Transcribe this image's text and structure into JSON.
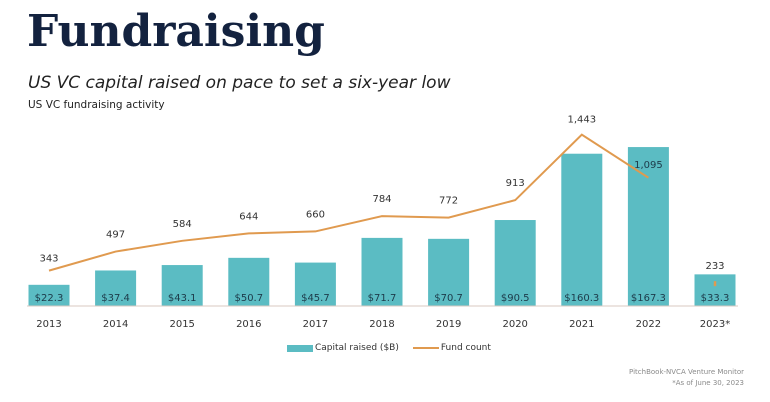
{
  "header": {
    "title": "Fundraising",
    "subtitle": "US VC capital raised on pace to set a six-year low",
    "caption": "US VC fundraising activity"
  },
  "chart_data": {
    "type": "bar",
    "title": "US VC fundraising activity",
    "categories": [
      "2013",
      "2014",
      "2015",
      "2016",
      "2017",
      "2018",
      "2019",
      "2020",
      "2021",
      "2022",
      "2023*"
    ],
    "series": [
      {
        "name": "Capital raised ($B)",
        "type": "bar",
        "color": "#5bbcc3",
        "values": [
          22.3,
          37.4,
          43.1,
          50.7,
          45.7,
          71.7,
          70.7,
          90.5,
          160.3,
          167.3,
          33.3
        ],
        "labels": [
          "$22.3",
          "$37.4",
          "$43.1",
          "$50.7",
          "$45.7",
          "$71.7",
          "$70.7",
          "$90.5",
          "$160.3",
          "$167.3",
          "$33.3"
        ]
      },
      {
        "name": "Fund count",
        "type": "line",
        "color": "#e09a4f",
        "values": [
          343,
          497,
          584,
          644,
          660,
          784,
          772,
          913,
          1443,
          1095,
          233
        ],
        "labels": [
          "343",
          "497",
          "584",
          "644",
          "660",
          "784",
          "772",
          "913",
          "1,443",
          "1,095",
          "233"
        ],
        "note": "2023* fund count shown as isolated point (line breaks after 2022)"
      }
    ],
    "xlabel": "",
    "ylabel": "",
    "y_axis_visible": false,
    "grid": false,
    "legend": [
      "Capital raised ($B)",
      "Fund count"
    ],
    "legend_placement": "bottom-center"
  },
  "legend": {
    "bar_label": "Capital raised ($B)",
    "line_label": "Fund count"
  },
  "footer": {
    "source": "PitchBook-NVCA Venture Monitor",
    "note": "*As of June 30, 2023"
  }
}
